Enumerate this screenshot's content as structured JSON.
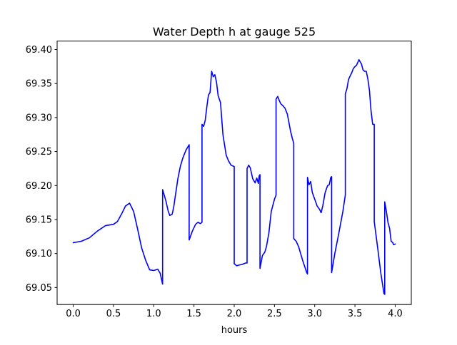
{
  "chart_data": {
    "type": "line",
    "title": "Water Depth h at gauge 525",
    "xlabel": "hours",
    "ylabel": "",
    "xlim": [
      -0.2,
      4.2
    ],
    "ylim": [
      69.025,
      69.4125
    ],
    "x_ticks": [
      0.0,
      0.5,
      1.0,
      1.5,
      2.0,
      2.5,
      3.0,
      3.5,
      4.0
    ],
    "x_tick_labels": [
      "0.0",
      "0.5",
      "1.0",
      "1.5",
      "2.0",
      "2.5",
      "3.0",
      "3.5",
      "4.0"
    ],
    "y_ticks": [
      69.05,
      69.1,
      69.15,
      69.2,
      69.25,
      69.3,
      69.35,
      69.4
    ],
    "y_tick_labels": [
      "69.05",
      "69.10",
      "69.15",
      "69.20",
      "69.25",
      "69.30",
      "69.35",
      "69.40"
    ],
    "grid": false,
    "legend": "none",
    "series": [
      {
        "color": "#0000ff",
        "x": [
          0.0,
          0.1,
          0.2,
          0.3,
          0.4,
          0.5,
          0.55,
          0.6,
          0.65,
          0.7,
          0.75,
          0.8,
          0.85,
          0.9,
          0.95,
          1.0,
          1.05,
          1.08,
          1.11,
          1.11,
          1.15,
          1.18,
          1.2,
          1.23,
          1.25,
          1.3,
          1.33,
          1.36,
          1.4,
          1.43,
          1.44,
          1.44,
          1.48,
          1.52,
          1.55,
          1.58,
          1.6,
          1.6,
          1.62,
          1.64,
          1.66,
          1.68,
          1.7,
          1.72,
          1.74,
          1.76,
          1.78,
          1.8,
          1.83,
          1.86,
          1.9,
          1.93,
          1.96,
          2.0,
          2.0,
          2.03,
          2.06,
          2.1,
          2.14,
          2.16,
          2.16,
          2.18,
          2.2,
          2.23,
          2.26,
          2.28,
          2.3,
          2.31,
          2.32,
          2.32,
          2.35,
          2.38,
          2.4,
          2.43,
          2.46,
          2.5,
          2.52,
          2.52,
          2.54,
          2.56,
          2.58,
          2.6,
          2.63,
          2.66,
          2.7,
          2.72,
          2.74,
          2.74,
          2.77,
          2.8,
          2.85,
          2.9,
          2.91,
          2.91,
          2.93,
          2.95,
          2.97,
          3.0,
          3.03,
          3.06,
          3.08,
          3.1,
          3.13,
          3.16,
          3.18,
          3.2,
          3.21,
          3.21,
          3.25,
          3.3,
          3.35,
          3.38,
          3.38,
          3.4,
          3.42,
          3.44,
          3.46,
          3.48,
          3.5,
          3.52,
          3.55,
          3.58,
          3.6,
          3.62,
          3.64,
          3.66,
          3.68,
          3.7,
          3.72,
          3.74,
          3.74,
          3.78,
          3.82,
          3.86,
          3.87,
          3.87,
          3.89,
          3.91,
          3.93,
          3.95,
          3.97,
          3.98,
          4.0
        ],
        "y": [
          69.116,
          69.118,
          69.123,
          69.133,
          69.141,
          69.143,
          69.147,
          69.158,
          69.17,
          69.174,
          69.162,
          69.136,
          69.108,
          69.09,
          69.076,
          69.075,
          69.077,
          69.071,
          69.055,
          69.194,
          69.178,
          69.162,
          69.156,
          69.158,
          69.17,
          69.21,
          69.228,
          69.24,
          69.252,
          69.258,
          69.26,
          69.12,
          69.133,
          69.143,
          69.146,
          69.144,
          69.146,
          69.29,
          69.287,
          69.296,
          69.316,
          69.333,
          69.337,
          69.368,
          69.36,
          69.363,
          69.352,
          69.332,
          69.322,
          69.275,
          69.245,
          69.236,
          69.23,
          69.228,
          69.085,
          69.082,
          69.083,
          69.084,
          69.086,
          69.086,
          69.225,
          69.23,
          69.226,
          69.21,
          69.204,
          69.211,
          69.203,
          69.214,
          69.216,
          69.078,
          69.097,
          69.102,
          69.11,
          69.13,
          69.162,
          69.18,
          69.186,
          69.327,
          69.331,
          69.325,
          69.32,
          69.318,
          69.314,
          69.305,
          69.28,
          69.27,
          69.262,
          69.122,
          69.118,
          69.11,
          69.09,
          69.072,
          69.07,
          69.212,
          69.201,
          69.206,
          69.19,
          69.18,
          69.17,
          69.165,
          69.16,
          69.17,
          69.19,
          69.2,
          69.201,
          69.212,
          69.213,
          69.072,
          69.1,
          69.13,
          69.162,
          69.186,
          69.335,
          69.342,
          69.356,
          69.361,
          69.366,
          69.372,
          69.375,
          69.377,
          69.385,
          69.379,
          69.37,
          69.368,
          69.368,
          69.357,
          69.34,
          69.31,
          69.29,
          69.29,
          69.147,
          69.11,
          69.072,
          69.041,
          69.04,
          69.176,
          69.162,
          69.146,
          69.137,
          69.118,
          69.116,
          69.113,
          69.114
        ]
      }
    ]
  }
}
